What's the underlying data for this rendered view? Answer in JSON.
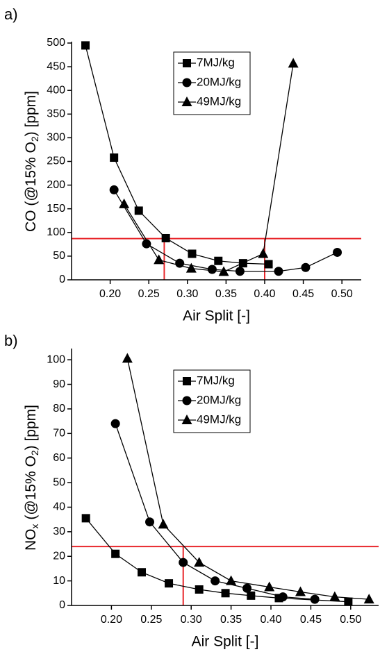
{
  "chart_data": [
    {
      "type": "line",
      "panel_label": "a)",
      "xlabel": "Air Split [-]",
      "ylabel": [
        "CO (@15% O",
        "2",
        ") [ppm]"
      ],
      "xlim": [
        0.15,
        0.525
      ],
      "ylim": [
        0,
        500
      ],
      "xticks": [
        {
          "value": 0.2,
          "label": "0.20"
        },
        {
          "value": 0.25,
          "label": "0.25"
        },
        {
          "value": 0.3,
          "label": "0.30"
        },
        {
          "value": 0.35,
          "label": "0.35"
        },
        {
          "value": 0.4,
          "label": "0.40"
        },
        {
          "value": 0.45,
          "label": "0.45"
        },
        {
          "value": 0.5,
          "label": "0.50"
        }
      ],
      "yticks": [
        0,
        50,
        100,
        150,
        200,
        250,
        300,
        350,
        400,
        450,
        500
      ],
      "legend": "top-center",
      "series": [
        {
          "name": "7MJ/kg",
          "color": "#000000",
          "marker": "square",
          "x": [
            0.168,
            0.205,
            0.237,
            0.272,
            0.306,
            0.34,
            0.372,
            0.405
          ],
          "values": [
            495,
            258,
            146,
            88,
            55,
            40,
            35,
            33
          ]
        },
        {
          "name": "20MJ/kg",
          "color": "#000000",
          "marker": "circle",
          "x": [
            0.205,
            0.247,
            0.29,
            0.332,
            0.368,
            0.418,
            0.453,
            0.494
          ],
          "values": [
            190,
            76,
            35,
            22,
            18,
            18,
            26,
            58
          ]
        },
        {
          "name": "49MJ/kg",
          "color": "#000000",
          "marker": "triangle",
          "x": [
            0.218,
            0.263,
            0.305,
            0.347,
            0.398,
            0.437
          ],
          "values": [
            160,
            42,
            24,
            17,
            55,
            457
          ]
        }
      ],
      "ref_color": "#e8262b",
      "hline": 87,
      "vlines": [
        0.27,
        0.4
      ]
    },
    {
      "type": "line",
      "panel_label": "b)",
      "xlabel": "Air Split [-]",
      "ylabel": [
        "NO",
        "x",
        " (@15% O",
        "2",
        ") [ppm]"
      ],
      "xlim": [
        0.15,
        0.535
      ],
      "ylim": [
        0,
        104
      ],
      "xticks": [
        {
          "value": 0.2,
          "label": "0.20"
        },
        {
          "value": 0.25,
          "label": "0.25"
        },
        {
          "value": 0.3,
          "label": "0.30"
        },
        {
          "value": 0.35,
          "label": "0.35"
        },
        {
          "value": 0.4,
          "label": "0.40"
        },
        {
          "value": 0.45,
          "label": "0.45"
        },
        {
          "value": 0.5,
          "label": "0.50"
        }
      ],
      "yticks": [
        0,
        10,
        20,
        30,
        40,
        50,
        60,
        70,
        80,
        90,
        100
      ],
      "legend": "top-center",
      "series": [
        {
          "name": "7MJ/kg",
          "color": "#000000",
          "marker": "square",
          "x": [
            0.168,
            0.205,
            0.238,
            0.272,
            0.31,
            0.343,
            0.375,
            0.41,
            0.497
          ],
          "values": [
            35.5,
            21,
            13.5,
            9,
            6.5,
            5,
            4,
            3,
            1.5
          ]
        },
        {
          "name": "20MJ/kg",
          "color": "#000000",
          "marker": "circle",
          "x": [
            0.205,
            0.248,
            0.29,
            0.33,
            0.37,
            0.415,
            0.455
          ],
          "values": [
            74,
            34,
            17.5,
            10,
            7,
            3.5,
            2.5
          ]
        },
        {
          "name": "49MJ/kg",
          "color": "#000000",
          "marker": "triangle",
          "x": [
            0.22,
            0.265,
            0.31,
            0.35,
            0.398,
            0.437,
            0.48,
            0.523
          ],
          "values": [
            100.5,
            33,
            17.5,
            10,
            7.5,
            5.5,
            3.5,
            2.5
          ]
        }
      ],
      "ref_color": "#e8262b",
      "hline": 24,
      "vlines": [
        0.29
      ]
    }
  ]
}
